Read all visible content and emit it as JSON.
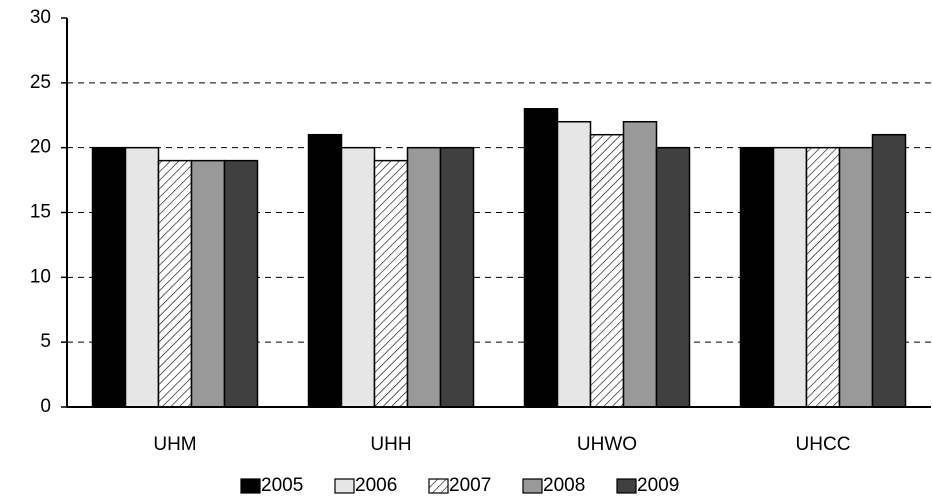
{
  "chart_data": {
    "type": "bar",
    "categories": [
      "UHM",
      "UHH",
      "UHWO",
      "UHCC"
    ],
    "series": [
      {
        "name": "2005",
        "color": "#000000",
        "values": [
          20,
          21,
          23,
          20
        ]
      },
      {
        "name": "2006",
        "color": "#e6e6e6",
        "values": [
          20,
          20,
          22,
          20
        ]
      },
      {
        "name": "2007",
        "color": "#ffffff",
        "pattern": "hatch",
        "values": [
          19,
          19,
          21,
          20
        ]
      },
      {
        "name": "2008",
        "color": "#999999",
        "values": [
          19,
          20,
          22,
          20
        ]
      },
      {
        "name": "2009",
        "color": "#404040",
        "values": [
          19,
          20,
          20,
          21
        ]
      }
    ],
    "ylim": [
      0,
      30
    ],
    "yticks": [
      0,
      5,
      10,
      15,
      20,
      25,
      30
    ],
    "grid": true,
    "legend": "bottom"
  }
}
